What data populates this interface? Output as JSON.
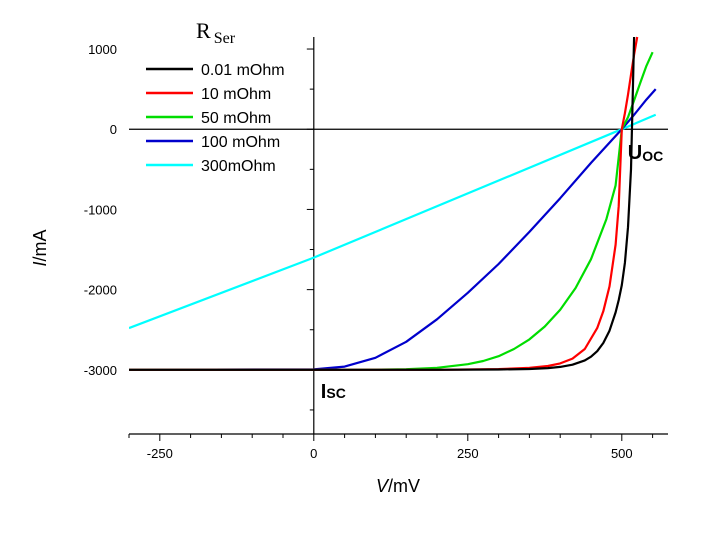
{
  "chart_data": {
    "type": "line",
    "title": "",
    "xlabel_italic": "V",
    "xlabel_unit": "/mV",
    "ylabel_italic": "I",
    "ylabel_unit": "/mA",
    "xlim": [
      -300,
      575
    ],
    "ylim": [
      -3800,
      1150
    ],
    "x_ticks": [
      -250,
      0,
      250,
      500
    ],
    "y_ticks": [
      1000,
      0,
      -1000,
      -2000,
      -3000
    ],
    "x_tick_labels": [
      "-250",
      "0",
      "250",
      "500"
    ],
    "y_tick_labels": [
      "1000",
      "0",
      "-1000",
      "-2000",
      "-3000"
    ],
    "legend": {
      "title_main": "R",
      "title_sub": "Ser",
      "position": "top-left"
    },
    "series": [
      {
        "name": "0.01 mOhm",
        "color": "#000000",
        "x": [
          -300,
          0,
          100,
          200,
          300,
          350,
          380,
          400,
          420,
          440,
          450,
          460,
          470,
          480,
          490,
          495,
          500,
          505,
          510,
          515,
          520
        ],
        "y": [
          -3000,
          -3000,
          -3000,
          -3000,
          -2996,
          -2989,
          -2978,
          -2963,
          -2936,
          -2882,
          -2836,
          -2767,
          -2665,
          -2512,
          -2284,
          -2130,
          -1944,
          -1667,
          -1222,
          -500,
          1150
        ]
      },
      {
        "name": "10 mOhm",
        "color": "#ff0000",
        "x": [
          -300,
          0,
          100,
          200,
          300,
          350,
          380,
          400,
          420,
          440,
          460,
          470,
          480,
          490,
          495,
          500,
          505,
          510,
          515,
          520,
          525
        ],
        "y": [
          -3000,
          -3000,
          -3000,
          -2999,
          -2991,
          -2976,
          -2952,
          -2920,
          -2860,
          -2740,
          -2480,
          -2270,
          -1960,
          -1440,
          -960,
          0,
          200,
          430,
          680,
          930,
          1150
        ]
      },
      {
        "name": "50 mOhm",
        "color": "#00dd00",
        "x": [
          -300,
          0,
          100,
          150,
          200,
          250,
          275,
          300,
          325,
          350,
          375,
          400,
          425,
          450,
          475,
          490,
          500,
          510,
          520,
          530,
          540,
          550
        ],
        "y": [
          -3000,
          -3000,
          -2998,
          -2992,
          -2975,
          -2930,
          -2890,
          -2830,
          -2740,
          -2620,
          -2460,
          -2250,
          -1980,
          -1620,
          -1120,
          -700,
          0,
          150,
          360,
          580,
          790,
          960
        ]
      },
      {
        "name": "100 mOhm",
        "color": "#0000cc",
        "x": [
          -300,
          0,
          50,
          100,
          150,
          200,
          250,
          300,
          350,
          400,
          450,
          500,
          520,
          540,
          555
        ],
        "y": [
          -3000,
          -2995,
          -2960,
          -2850,
          -2650,
          -2370,
          -2040,
          -1680,
          -1280,
          -860,
          -420,
          0,
          180,
          370,
          500
        ]
      },
      {
        "name": "300mOhm",
        "color": "#00ffff",
        "x": [
          -300,
          0,
          500,
          555
        ],
        "y": [
          -2480,
          -1600,
          0,
          180
        ]
      }
    ],
    "annotations": [
      {
        "name": "isc",
        "main": "I",
        "sub": "SC",
        "x": 0,
        "y": -3000
      },
      {
        "name": "uoc",
        "main": "U",
        "sub": "OC",
        "x": 500,
        "y": 0
      }
    ]
  }
}
